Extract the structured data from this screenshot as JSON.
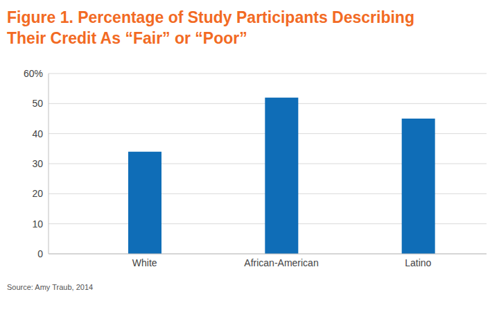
{
  "chart_data": {
    "type": "bar",
    "title": "Figure 1. Percentage of Study Participants Describing Their Credit As “Fair” or “Poor”",
    "categories": [
      "White",
      "African-American",
      "Latino"
    ],
    "values": [
      34,
      52,
      45
    ],
    "color": "#0f6db7",
    "ylim": [
      0,
      60
    ],
    "yticks": [
      0,
      10,
      20,
      30,
      40,
      50,
      {
        "value": 60,
        "label": "60%"
      }
    ],
    "grid": true,
    "source": "Source: Amy Traub, 2014"
  }
}
